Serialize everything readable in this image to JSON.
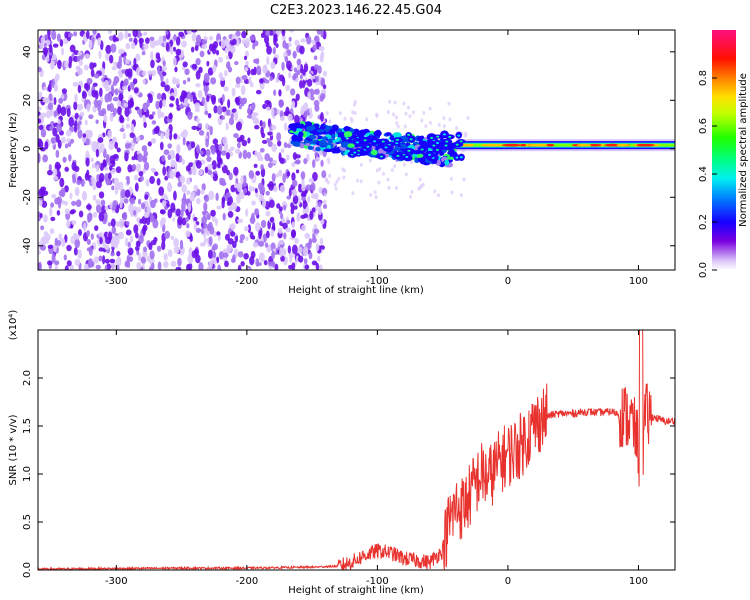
{
  "title": "C2E3.2023.146.22.45.G04",
  "chart_data": [
    {
      "type": "heatmap",
      "title": "C2E3.2023.146.22.45.G04",
      "xlabel": "Height of straight line (km)",
      "ylabel": "Frequency (Hz)",
      "xlim": [
        -360,
        128
      ],
      "ylim": [
        -50,
        49
      ],
      "x_ticks": [
        -300,
        -200,
        -100,
        0,
        100
      ],
      "y_ticks": [
        -40,
        -20,
        0,
        20,
        40
      ],
      "grid": false,
      "colorbar": {
        "label": "Normalized spectral amplitude",
        "range": [
          0.0,
          1.0
        ],
        "ticks": [
          0.0,
          0.2,
          0.4,
          0.6,
          0.8
        ],
        "tick_labels": [
          "0.0",
          "0.2",
          "0.4",
          "0.6",
          "0.8"
        ]
      },
      "regions": [
        {
          "description": "broadband noise",
          "x": [
            -360,
            -140
          ],
          "y": [
            -50,
            49
          ],
          "amplitude": 0.08
        },
        {
          "description": "signal band",
          "x": [
            -165,
            -40
          ],
          "y": [
            -8,
            10
          ],
          "amplitude": 0.3
        },
        {
          "description": "signal band (strong)",
          "x": [
            -40,
            128
          ],
          "y": [
            0,
            3
          ],
          "amplitude": 0.85
        }
      ]
    },
    {
      "type": "line",
      "xlabel": "Height of straight line (km)",
      "ylabel": "SNR (10 * v/v)",
      "y_multiplier_label": "(x10⁴)",
      "xlim": [
        -360,
        128
      ],
      "ylim": [
        0.0,
        2.5
      ],
      "x_ticks": [
        -300,
        -200,
        -100,
        0,
        100
      ],
      "y_ticks": [
        0.0,
        0.5,
        1.0,
        1.5,
        2.0
      ],
      "y_tick_labels": [
        "0.0",
        "0.5",
        "1.0",
        "1.5",
        "2.0"
      ],
      "grid": false,
      "series": [
        {
          "color": "#e8322e",
          "x": [
            -360,
            -300,
            -250,
            -200,
            -150,
            -130,
            -120,
            -110,
            -100,
            -90,
            -80,
            -70,
            -60,
            -50,
            -45,
            -40,
            -35,
            -30,
            -25,
            -20,
            -15,
            -10,
            -5,
            0,
            5,
            10,
            15,
            20,
            25,
            30,
            35,
            40,
            50,
            60,
            70,
            80,
            90,
            95,
            100,
            102,
            105,
            110,
            120,
            128
          ],
          "y": [
            0.01,
            0.015,
            0.02,
            0.02,
            0.03,
            0.04,
            0.08,
            0.15,
            0.2,
            0.18,
            0.12,
            0.1,
            0.08,
            0.2,
            0.5,
            0.65,
            0.65,
            0.75,
            0.9,
            1.0,
            0.95,
            1.05,
            1.15,
            1.2,
            1.25,
            1.3,
            1.4,
            1.5,
            1.57,
            1.6,
            1.62,
            1.63,
            1.63,
            1.65,
            1.64,
            1.65,
            1.6,
            1.55,
            1.3,
            0.85,
            1.6,
            1.6,
            1.55,
            1.55
          ]
        }
      ]
    }
  ]
}
